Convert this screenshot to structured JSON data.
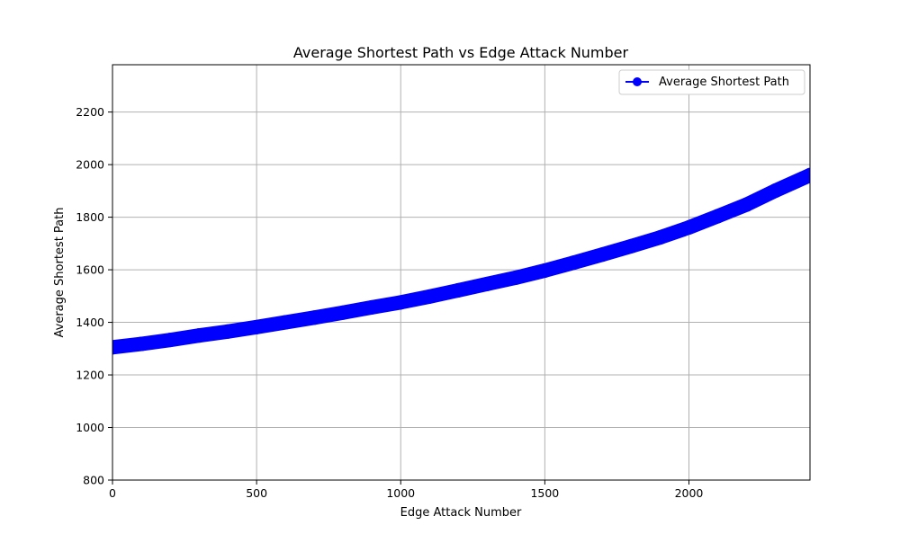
{
  "chart_data": {
    "type": "line",
    "title": "Average Shortest Path vs Edge Attack Number",
    "xlabel": "Edge Attack Number",
    "ylabel": "Average Shortest Path",
    "xlim": [
      0,
      2420
    ],
    "ylim": [
      800,
      2380
    ],
    "x_ticks": [
      0,
      500,
      1000,
      1500,
      2000
    ],
    "y_ticks": [
      800,
      1000,
      1200,
      1400,
      1600,
      1800,
      2000,
      2200
    ],
    "grid": true,
    "legend_position": "top-right",
    "series": [
      {
        "name": "Average Shortest Path",
        "color": "#0000ff",
        "marker": "circle",
        "x": [
          0,
          100,
          200,
          300,
          400,
          500,
          600,
          700,
          800,
          900,
          1000,
          1100,
          1200,
          1300,
          1400,
          1500,
          1600,
          1700,
          1800,
          1900,
          2000,
          2100,
          2200,
          2300,
          2420
        ],
        "y": [
          1305,
          1318,
          1333,
          1350,
          1365,
          1382,
          1400,
          1418,
          1437,
          1457,
          1476,
          1498,
          1522,
          1546,
          1570,
          1597,
          1627,
          1658,
          1690,
          1723,
          1761,
          1804,
          1848,
          1901,
          1960
        ]
      }
    ]
  }
}
